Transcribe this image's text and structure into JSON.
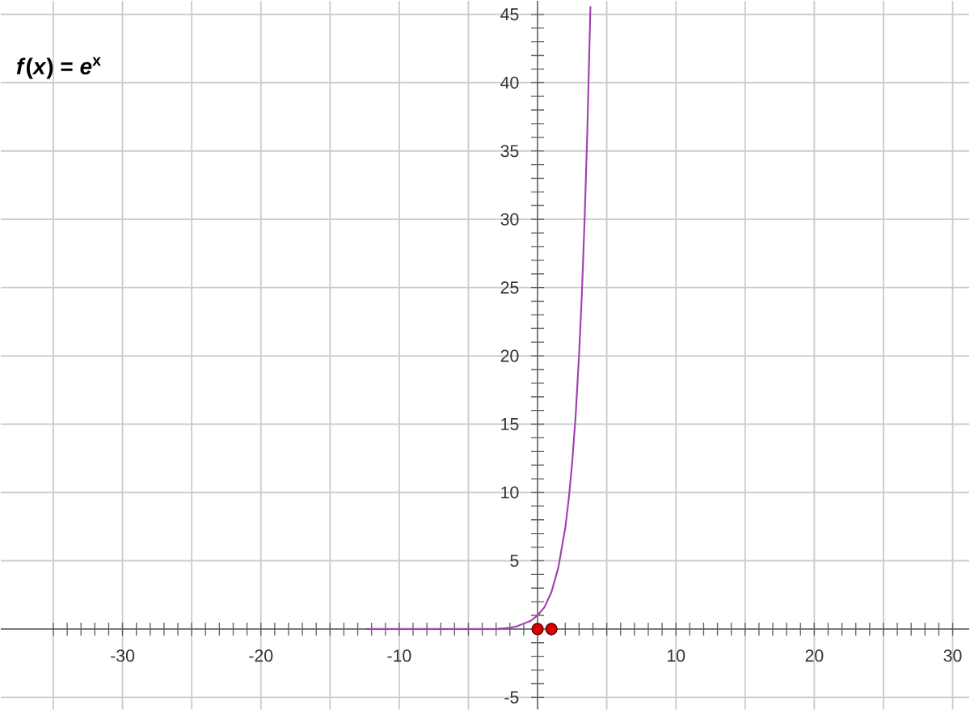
{
  "chart_data": {
    "type": "line",
    "annotations": [
      "*f*(*x*) = *e*$^{x}$"
    ],
    "series": [
      {
        "color": "#a040b0",
        "marker": "none",
        "x": [
          -12.4,
          -10,
          -8,
          -6,
          -4,
          -3,
          -2,
          -1.5,
          -1,
          -0.5,
          0,
          0.5,
          1,
          1.5,
          2,
          2.25,
          2.5,
          2.75,
          3,
          3.2,
          3.4,
          3.6,
          3.82
        ],
        "values": [
          0.0,
          0.0,
          0.0,
          0.0,
          0.0,
          0.0,
          0.1,
          0.2,
          0.4,
          0.6,
          1.0,
          1.6,
          2.7,
          4.5,
          7.4,
          9.5,
          12.2,
          15.6,
          20.1,
          24.5,
          30.0,
          36.6,
          45.6
        ]
      },
      {
        "type": "scatter",
        "color": "#e00000",
        "marker": "circle",
        "x": [
          0,
          1
        ],
        "values": [
          0,
          0
        ]
      }
    ],
    "xlim": [
      -38.8,
      31.2
    ],
    "ylim": [
      -5.9,
      46
    ],
    "xticks": [
      {
        "value": -35,
        "label": null
      },
      -30,
      {
        "value": -25,
        "label": null
      },
      -20,
      {
        "value": -15,
        "label": null
      },
      -10,
      {
        "value": -5,
        "label": null
      },
      {
        "value": 0,
        "label": null
      },
      {
        "value": 5,
        "label": null
      },
      10,
      {
        "value": 15,
        "label": null
      },
      20,
      {
        "value": 25,
        "label": null
      },
      30
    ],
    "yticks": [
      -5,
      {
        "value": 0,
        "label": null
      },
      5,
      10,
      15,
      20,
      25,
      30,
      35,
      40,
      45
    ],
    "grid": true
  }
}
